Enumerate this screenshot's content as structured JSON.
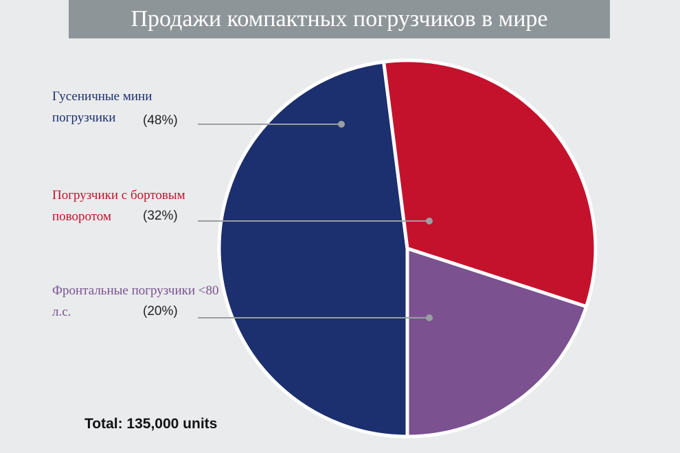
{
  "chart_data": {
    "type": "pie",
    "title": "Продажи компактных погрузчиков в мире",
    "categories": [
      "Гусеничные мини погрузчики",
      "Погрузчики с бортовым поворотом",
      "Фронтальные погрузчики <80 л.с."
    ],
    "values": [
      48,
      32,
      20
    ],
    "value_labels": [
      "(48%)",
      "(32%)",
      "(20%)"
    ],
    "colors": [
      "#1c2f6e",
      "#c4122d",
      "#7b5190"
    ],
    "annotation": "Total: 135,000 units"
  }
}
